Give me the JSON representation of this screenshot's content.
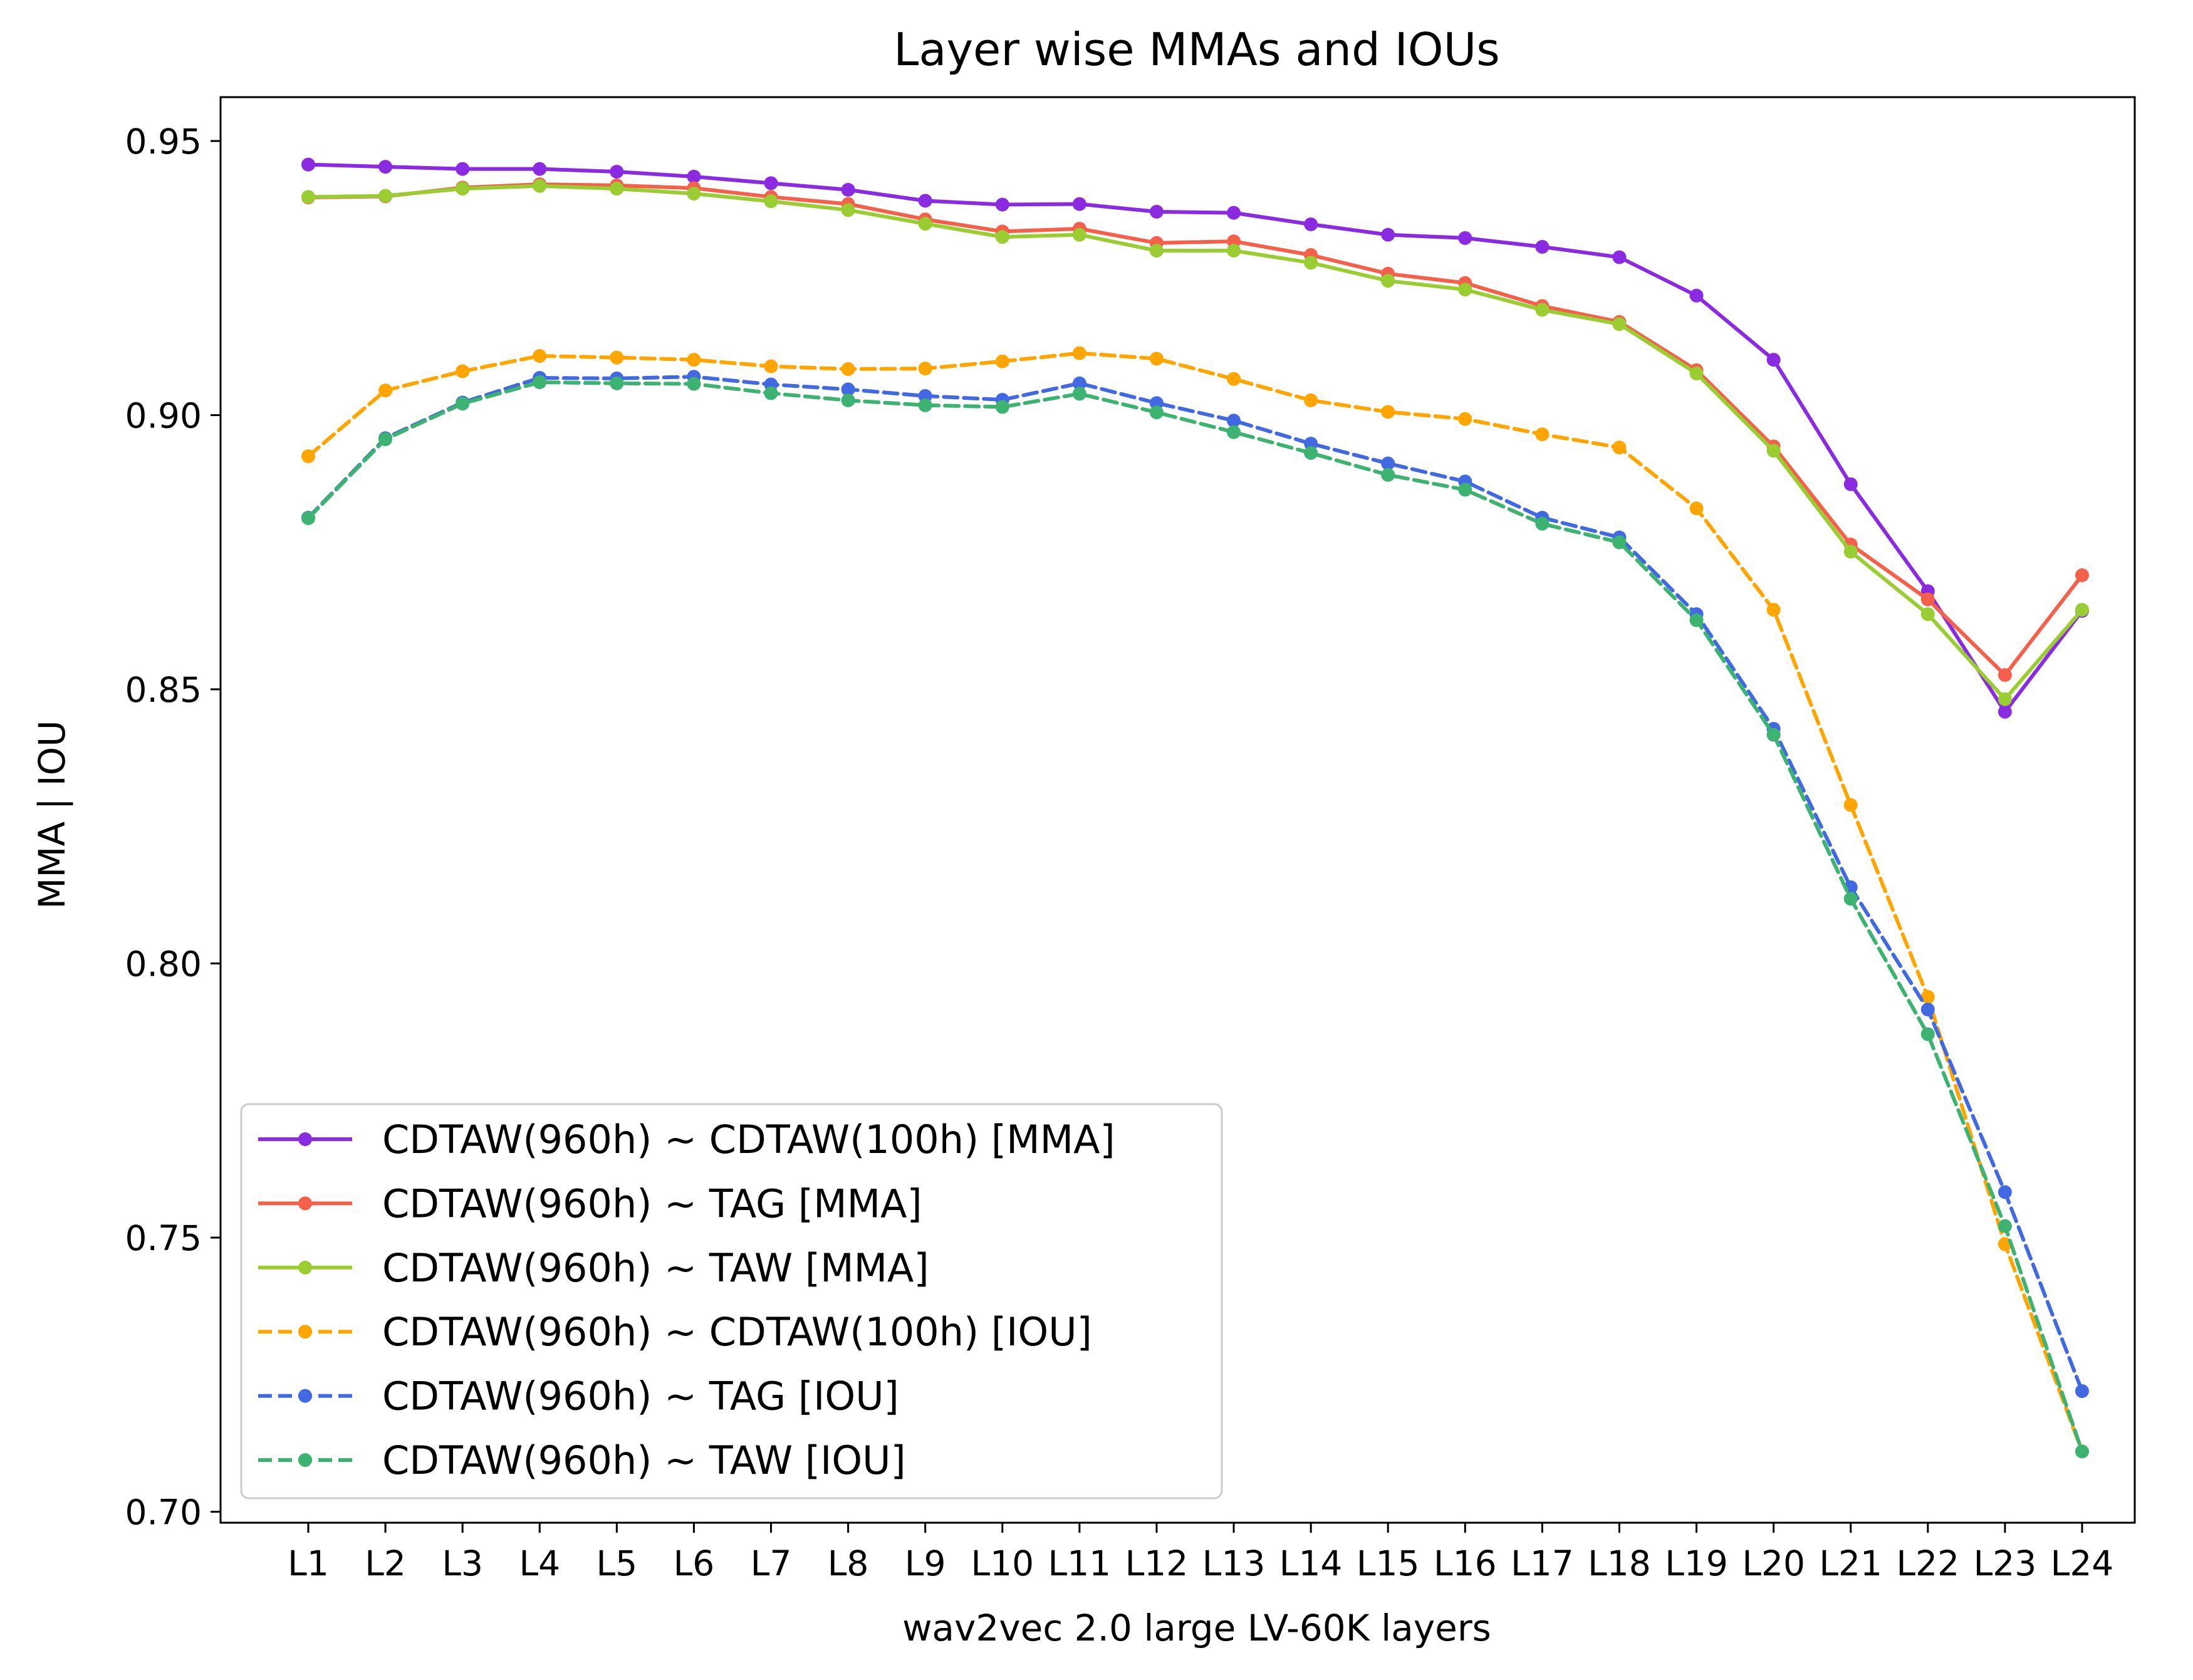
{
  "chart_data": {
    "type": "line",
    "title": "Layer wise MMAs and IOUs",
    "xlabel": "wav2vec 2.0 large LV-60K layers",
    "ylabel": "MMA | IOU",
    "categories": [
      "L1",
      "L2",
      "L3",
      "L4",
      "L5",
      "L6",
      "L7",
      "L8",
      "L9",
      "L10",
      "L11",
      "L12",
      "L13",
      "L14",
      "L15",
      "L16",
      "L17",
      "L18",
      "L19",
      "L20",
      "L21",
      "L22",
      "L23",
      "L24"
    ],
    "ylim": [
      0.698,
      0.958
    ],
    "yticks": [
      "0.70",
      "0.75",
      "0.80",
      "0.85",
      "0.90",
      "0.95"
    ],
    "ytick_values": [
      0.7,
      0.75,
      0.8,
      0.85,
      0.9,
      0.95
    ],
    "grid": false,
    "legend_position": "lower-left",
    "series": [
      {
        "name": "CDTAW(960h) ~ CDTAW(100h) [MMA]",
        "color": "#8a2be2",
        "dashed": false,
        "values": [
          0.9457,
          0.9453,
          0.9449,
          0.9449,
          0.9444,
          0.9435,
          0.9423,
          0.9411,
          0.9391,
          0.9384,
          0.9385,
          0.9371,
          0.9369,
          0.9348,
          0.9329,
          0.9323,
          0.9307,
          0.9288,
          0.9218,
          0.9101,
          0.8874,
          0.8679,
          0.8459,
          0.8643
        ]
      },
      {
        "name": "CDTAW(960h) ~ TAG [MMA]",
        "color": "#f4604a",
        "dashed": false,
        "values": [
          0.9397,
          0.9399,
          0.9415,
          0.9421,
          0.9419,
          0.9414,
          0.9398,
          0.9385,
          0.9357,
          0.9335,
          0.934,
          0.9314,
          0.9317,
          0.9292,
          0.9258,
          0.9241,
          0.9199,
          0.917,
          0.9082,
          0.8943,
          0.8764,
          0.8664,
          0.8526,
          0.8708
        ]
      },
      {
        "name": "CDTAW(960h) ~ TAW [MMA]",
        "color": "#9acd32",
        "dashed": false,
        "values": [
          0.9398,
          0.94,
          0.9413,
          0.9418,
          0.9413,
          0.9404,
          0.939,
          0.9374,
          0.9349,
          0.9325,
          0.9329,
          0.93,
          0.93,
          0.9278,
          0.9245,
          0.9229,
          0.9192,
          0.9166,
          0.9076,
          0.8935,
          0.8751,
          0.8637,
          0.8482,
          0.8645
        ]
      },
      {
        "name": "CDTAW(960h) ~ CDTAW(100h) [IOU]",
        "color": "#ffa500",
        "dashed": true,
        "values": [
          0.8925,
          0.9045,
          0.908,
          0.9108,
          0.9105,
          0.9101,
          0.9089,
          0.9084,
          0.9085,
          0.9098,
          0.9113,
          0.9103,
          0.9066,
          0.9027,
          0.9006,
          0.8993,
          0.8965,
          0.8941,
          0.883,
          0.8645,
          0.8289,
          0.7939,
          0.7488,
          0.711
        ]
      },
      {
        "name": "CDTAW(960h) ~ TAG [IOU]",
        "color": "#4169e1",
        "dashed": true,
        "values": [
          0.8813,
          0.8958,
          0.9023,
          0.9068,
          0.9067,
          0.907,
          0.9056,
          0.9047,
          0.9035,
          0.9028,
          0.9058,
          0.9022,
          0.899,
          0.8948,
          0.8912,
          0.8879,
          0.8813,
          0.8777,
          0.8637,
          0.8428,
          0.8139,
          0.7916,
          0.7583,
          0.722
        ]
      },
      {
        "name": "CDTAW(960h) ~ TAW [IOU]",
        "color": "#3cb371",
        "dashed": true,
        "values": [
          0.8812,
          0.8956,
          0.9021,
          0.906,
          0.9058,
          0.9057,
          0.904,
          0.9027,
          0.9018,
          0.9015,
          0.9039,
          0.9005,
          0.8969,
          0.8931,
          0.8891,
          0.8864,
          0.8802,
          0.8768,
          0.8626,
          0.8417,
          0.8118,
          0.7871,
          0.7521,
          0.711
        ]
      }
    ]
  }
}
